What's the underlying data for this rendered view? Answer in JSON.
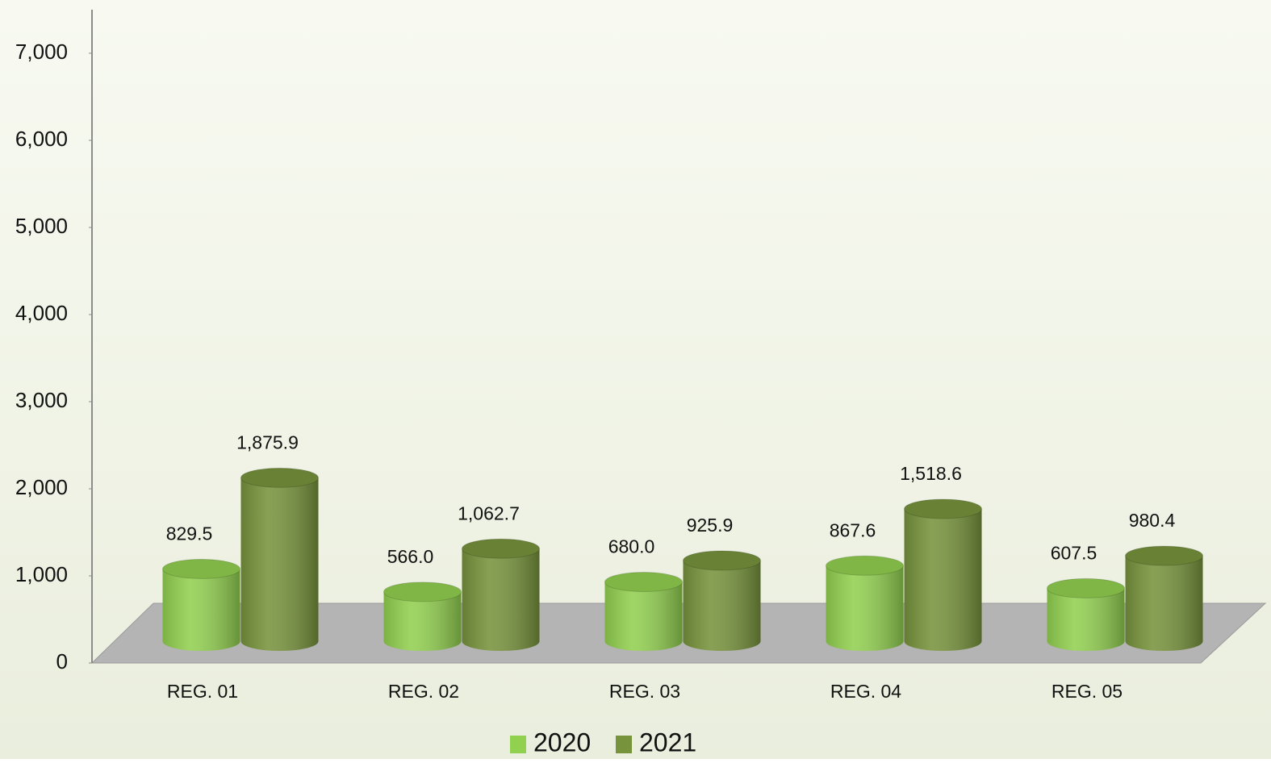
{
  "chart_data": {
    "type": "bar3d",
    "categories": [
      "REG. 01",
      "REG. 02",
      "REG. 03",
      "REG. 04",
      "REG. 05"
    ],
    "series": [
      {
        "name": "2020",
        "color": "#92d050",
        "values": [
          829.5,
          566.0,
          680.0,
          867.6,
          607.5
        ],
        "value_labels": [
          "829.5",
          "566.0",
          "680.0",
          "867.6",
          "607.5"
        ]
      },
      {
        "name": "2021",
        "color": "#77933c",
        "values": [
          1875.9,
          1062.7,
          925.9,
          1518.6,
          980.4
        ],
        "value_labels": [
          "1,875.9",
          "1,062.7",
          "925.9",
          "1,518.6",
          "980.4"
        ]
      }
    ],
    "ylim": [
      0,
      7500
    ],
    "yticks": [
      0,
      {
        "value": 1000,
        "label": "1,000"
      },
      {
        "value": 2000,
        "label": "2,000"
      },
      {
        "value": 3000,
        "label": "3,000"
      },
      {
        "value": 4000,
        "label": "4,000"
      },
      {
        "value": 5000,
        "label": "5,000"
      },
      {
        "value": 6000,
        "label": "6,000"
      },
      {
        "value": 7000,
        "label": "7,000"
      }
    ],
    "legend": "bottom"
  }
}
